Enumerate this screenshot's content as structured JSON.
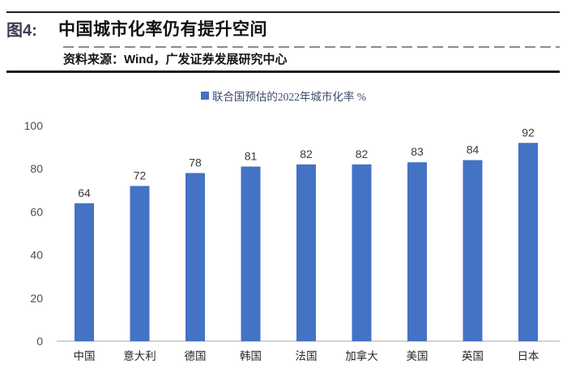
{
  "header": {
    "figure_label": "图4:",
    "title": "中国城市化率仍有提升空间",
    "source": "资料来源：Wind，广发证券发展研究中心"
  },
  "chart_data": {
    "type": "bar",
    "title": "",
    "legend": [
      "联合国预估的2022年城市化率 %"
    ],
    "legend_position": "top-center",
    "categories": [
      "中国",
      "意大利",
      "德国",
      "韩国",
      "法国",
      "加拿大",
      "美国",
      "英国",
      "日本"
    ],
    "values": [
      64,
      72,
      78,
      81,
      82,
      82,
      83,
      84,
      92
    ],
    "xlabel": "",
    "ylabel": "",
    "ylim": [
      0,
      100
    ],
    "yticks": [
      0,
      20,
      40,
      60,
      80,
      100
    ],
    "grid": false,
    "data_labels": true,
    "bar_color": "#4472C4",
    "axis_line_color": "#c3c3c3",
    "tick_label_color": "#4d4d4d",
    "legend_text_color": "#3d4a6e"
  }
}
